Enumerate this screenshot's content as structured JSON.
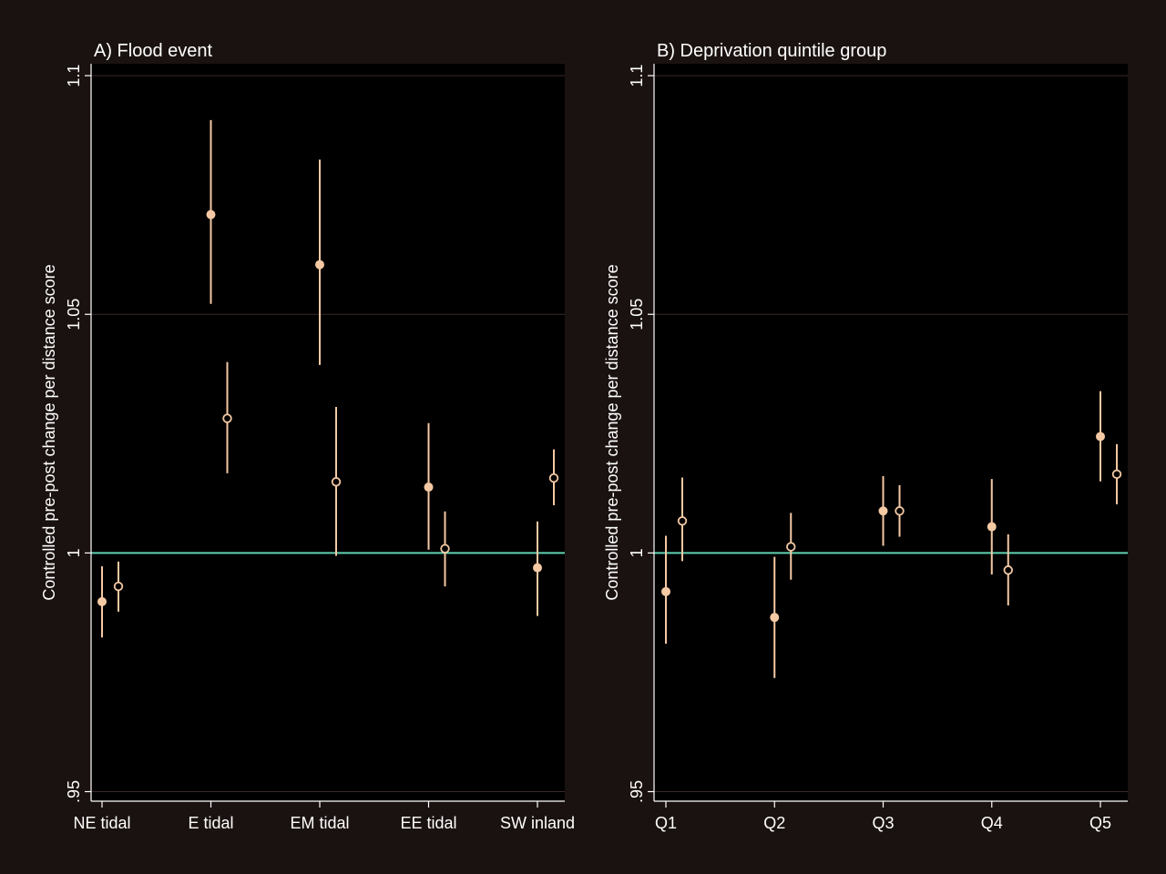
{
  "colors": {
    "background": "#1a1210",
    "plot_background": "#000000",
    "axis": "#ffffff",
    "gridline": "#3a2a28",
    "reference_line": "#5fd3b3",
    "marker": "#f4c9a4"
  },
  "chart_data": [
    {
      "type": "scatter",
      "title": "A) Flood event",
      "xlabel": "",
      "ylabel": "Controlled pre-post change per distance score",
      "ylim": [
        0.948,
        1.1025
      ],
      "yticks": [
        0.95,
        1,
        1.05,
        1.1
      ],
      "ytick_labels": [
        ".95",
        "1",
        "1.05",
        "1.1"
      ],
      "reference_y": 1,
      "grid": "horizontal",
      "categories": [
        "NE tidal",
        "E tidal",
        "EM tidal",
        "EE tidal",
        "SW inland"
      ],
      "series": [
        {
          "marker": "filled",
          "points": [
            {
              "category": "NE tidal",
              "y": 0.9898,
              "lo": 0.9823,
              "hi": 0.9972
            },
            {
              "category": "E tidal",
              "y": 1.0709,
              "lo": 1.0522,
              "hi": 1.0907
            },
            {
              "category": "EM tidal",
              "y": 1.0604,
              "lo": 1.0394,
              "hi": 1.0824
            },
            {
              "category": "EE tidal",
              "y": 1.0138,
              "lo": 1.0007,
              "hi": 1.0272
            },
            {
              "category": "SW inland",
              "y": 0.9969,
              "lo": 0.9868,
              "hi": 1.0066
            }
          ]
        },
        {
          "marker": "hollow",
          "points": [
            {
              "category": "NE tidal",
              "y": 0.993,
              "lo": 0.9877,
              "hi": 0.9982
            },
            {
              "category": "E tidal",
              "y": 1.0282,
              "lo": 1.0167,
              "hi": 1.04
            },
            {
              "category": "EM tidal",
              "y": 1.0149,
              "lo": 0.9994,
              "hi": 1.0306
            },
            {
              "category": "EE tidal",
              "y": 1.0009,
              "lo": 0.993,
              "hi": 1.0087
            },
            {
              "category": "SW inland",
              "y": 1.0157,
              "lo": 1.01,
              "hi": 1.0217
            }
          ]
        }
      ]
    },
    {
      "type": "scatter",
      "title": "B) Deprivation quintile group",
      "xlabel": "",
      "ylabel": "Controlled pre-post change per distance score",
      "ylim": [
        0.948,
        1.1025
      ],
      "yticks": [
        0.95,
        1,
        1.05,
        1.1
      ],
      "ytick_labels": [
        ".95",
        "1",
        "1.05",
        "1.1"
      ],
      "reference_y": 1,
      "grid": "horizontal",
      "categories": [
        "Q1",
        "Q2",
        "Q3",
        "Q4",
        "Q5"
      ],
      "series": [
        {
          "marker": "filled",
          "points": [
            {
              "category": "Q1",
              "y": 0.9919,
              "lo": 0.981,
              "hi": 1.0036
            },
            {
              "category": "Q2",
              "y": 0.9865,
              "lo": 0.9738,
              "hi": 0.9992
            },
            {
              "category": "Q3",
              "y": 1.0088,
              "lo": 1.0015,
              "hi": 1.0161
            },
            {
              "category": "Q4",
              "y": 1.0055,
              "lo": 0.9955,
              "hi": 1.0155
            },
            {
              "category": "Q5",
              "y": 1.0244,
              "lo": 1.015,
              "hi": 1.0339
            }
          ]
        },
        {
          "marker": "hollow",
          "points": [
            {
              "category": "Q1",
              "y": 1.0067,
              "lo": 0.9983,
              "hi": 1.0158
            },
            {
              "category": "Q2",
              "y": 1.0013,
              "lo": 0.9944,
              "hi": 1.0084
            },
            {
              "category": "Q3",
              "y": 1.0088,
              "lo": 1.0034,
              "hi": 1.0142
            },
            {
              "category": "Q4",
              "y": 0.9964,
              "lo": 0.989,
              "hi": 1.0039
            },
            {
              "category": "Q5",
              "y": 1.0165,
              "lo": 1.0102,
              "hi": 1.0228
            }
          ]
        }
      ]
    }
  ]
}
